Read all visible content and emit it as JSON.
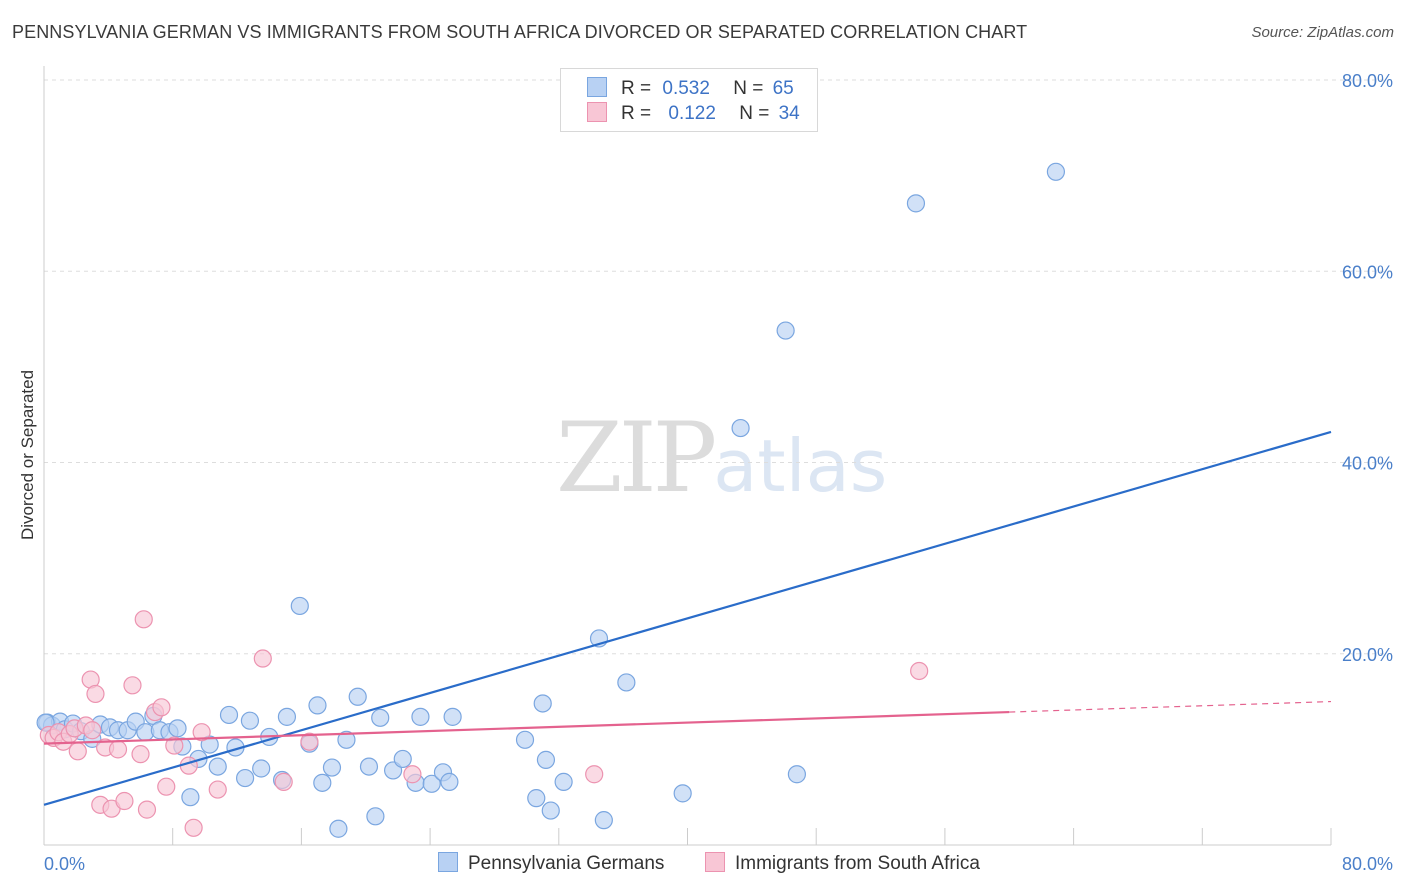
{
  "title": "PENNSYLVANIA GERMAN VS IMMIGRANTS FROM SOUTH AFRICA DIVORCED OR SEPARATED CORRELATION CHART",
  "source": "Source: ZipAtlas.com",
  "watermark": {
    "zip": "ZIP",
    "atlas": "atlas"
  },
  "colors": {
    "blue_fill": "#b8d1f3",
    "blue_stroke": "#7aa6e0",
    "blue_line": "#2a6cc9",
    "pink_fill": "#f8c6d5",
    "pink_stroke": "#ec93b0",
    "pink_line": "#e4628e",
    "axis_text": "#4a7fc9",
    "grid": "#dddddd"
  },
  "legend": {
    "rows": [
      {
        "series": "Pennsylvania Germans",
        "r_label": "R =",
        "r_value": "0.532",
        "n_label": "N =",
        "n_value": "65"
      },
      {
        "series": "Immigrants from South Africa",
        "r_label": "R =",
        "r_value": "0.122",
        "n_label": "N =",
        "n_value": "34"
      }
    ]
  },
  "chart_data": {
    "type": "scatter",
    "title": "PENNSYLVANIA GERMAN VS IMMIGRANTS FROM SOUTH AFRICA DIVORCED OR SEPARATED CORRELATION CHART",
    "xlabel": "",
    "ylabel": "Divorced or Separated",
    "xlim": [
      0,
      80
    ],
    "ylim": [
      0,
      80
    ],
    "x_tick_labels": [
      "0.0%",
      "80.0%"
    ],
    "y_ticks": [
      20,
      40,
      60,
      80
    ],
    "y_tick_labels": [
      "20.0%",
      "40.0%",
      "60.0%",
      "80.0%"
    ],
    "grid": true,
    "legend_position": "top-center",
    "series": [
      {
        "name": "Pennsylvania Germans",
        "r": 0.532,
        "n": 65,
        "trend": {
          "x": [
            0,
            80
          ],
          "y": [
            4.2,
            43.2
          ],
          "dashed_from": null
        },
        "points": [
          [
            0.2,
            12.8
          ],
          [
            0.5,
            12.5
          ],
          [
            1.0,
            12.9
          ],
          [
            1.3,
            12.1
          ],
          [
            1.8,
            12.7
          ],
          [
            2.3,
            11.9
          ],
          [
            3.0,
            11.1
          ],
          [
            3.5,
            12.6
          ],
          [
            4.1,
            12.3
          ],
          [
            4.6,
            12.0
          ],
          [
            5.2,
            12.0
          ],
          [
            5.7,
            12.9
          ],
          [
            6.3,
            11.8
          ],
          [
            6.8,
            13.5
          ],
          [
            7.2,
            12.0
          ],
          [
            7.8,
            11.8
          ],
          [
            8.3,
            12.2
          ],
          [
            8.6,
            10.3
          ],
          [
            9.1,
            5.0
          ],
          [
            9.6,
            9.0
          ],
          [
            10.3,
            10.5
          ],
          [
            10.8,
            8.2
          ],
          [
            11.5,
            13.6
          ],
          [
            11.9,
            10.2
          ],
          [
            12.5,
            7.0
          ],
          [
            12.8,
            13.0
          ],
          [
            13.5,
            8.0
          ],
          [
            14.0,
            11.3
          ],
          [
            14.8,
            6.8
          ],
          [
            15.1,
            13.4
          ],
          [
            15.9,
            25.0
          ],
          [
            16.5,
            10.6
          ],
          [
            17.0,
            14.6
          ],
          [
            17.3,
            6.5
          ],
          [
            17.9,
            8.1
          ],
          [
            18.3,
            1.7
          ],
          [
            18.8,
            11.0
          ],
          [
            19.5,
            15.5
          ],
          [
            20.2,
            8.2
          ],
          [
            20.9,
            13.3
          ],
          [
            20.6,
            3.0
          ],
          [
            21.7,
            7.8
          ],
          [
            22.3,
            9.0
          ],
          [
            23.1,
            6.5
          ],
          [
            23.4,
            13.4
          ],
          [
            24.1,
            6.4
          ],
          [
            24.8,
            7.6
          ],
          [
            25.2,
            6.6
          ],
          [
            25.4,
            13.4
          ],
          [
            29.9,
            11.0
          ],
          [
            30.6,
            4.9
          ],
          [
            31.0,
            14.8
          ],
          [
            31.2,
            8.9
          ],
          [
            31.5,
            3.6
          ],
          [
            32.3,
            6.6
          ],
          [
            34.5,
            21.6
          ],
          [
            34.8,
            2.6
          ],
          [
            36.2,
            17.0
          ],
          [
            39.7,
            5.4
          ],
          [
            43.3,
            43.6
          ],
          [
            46.1,
            53.8
          ],
          [
            46.8,
            7.4
          ],
          [
            54.2,
            67.1
          ],
          [
            62.9,
            70.4
          ],
          [
            0.1,
            12.8
          ]
        ]
      },
      {
        "name": "Immigrants from South Africa",
        "r": 0.122,
        "n": 34,
        "trend": {
          "x": [
            0,
            80
          ],
          "y": [
            10.6,
            15.0
          ],
          "dashed_from": 60
        },
        "points": [
          [
            0.3,
            11.5
          ],
          [
            0.6,
            11.2
          ],
          [
            0.9,
            11.8
          ],
          [
            1.2,
            10.8
          ],
          [
            1.6,
            11.6
          ],
          [
            1.9,
            12.2
          ],
          [
            2.1,
            9.8
          ],
          [
            2.6,
            12.5
          ],
          [
            2.9,
            17.3
          ],
          [
            3.2,
            15.8
          ],
          [
            3.5,
            4.2
          ],
          [
            3.8,
            10.2
          ],
          [
            4.2,
            3.8
          ],
          [
            4.6,
            10.0
          ],
          [
            5.0,
            4.6
          ],
          [
            5.5,
            16.7
          ],
          [
            6.0,
            9.5
          ],
          [
            6.2,
            23.6
          ],
          [
            6.4,
            3.7
          ],
          [
            6.9,
            13.9
          ],
          [
            7.3,
            14.4
          ],
          [
            7.6,
            6.1
          ],
          [
            8.1,
            10.4
          ],
          [
            9.0,
            8.3
          ],
          [
            9.3,
            1.8
          ],
          [
            9.8,
            11.8
          ],
          [
            10.8,
            5.8
          ],
          [
            13.6,
            19.5
          ],
          [
            14.9,
            6.6
          ],
          [
            16.5,
            10.8
          ],
          [
            22.9,
            7.4
          ],
          [
            34.2,
            7.4
          ],
          [
            54.4,
            18.2
          ],
          [
            3.0,
            12.0
          ]
        ]
      }
    ]
  }
}
